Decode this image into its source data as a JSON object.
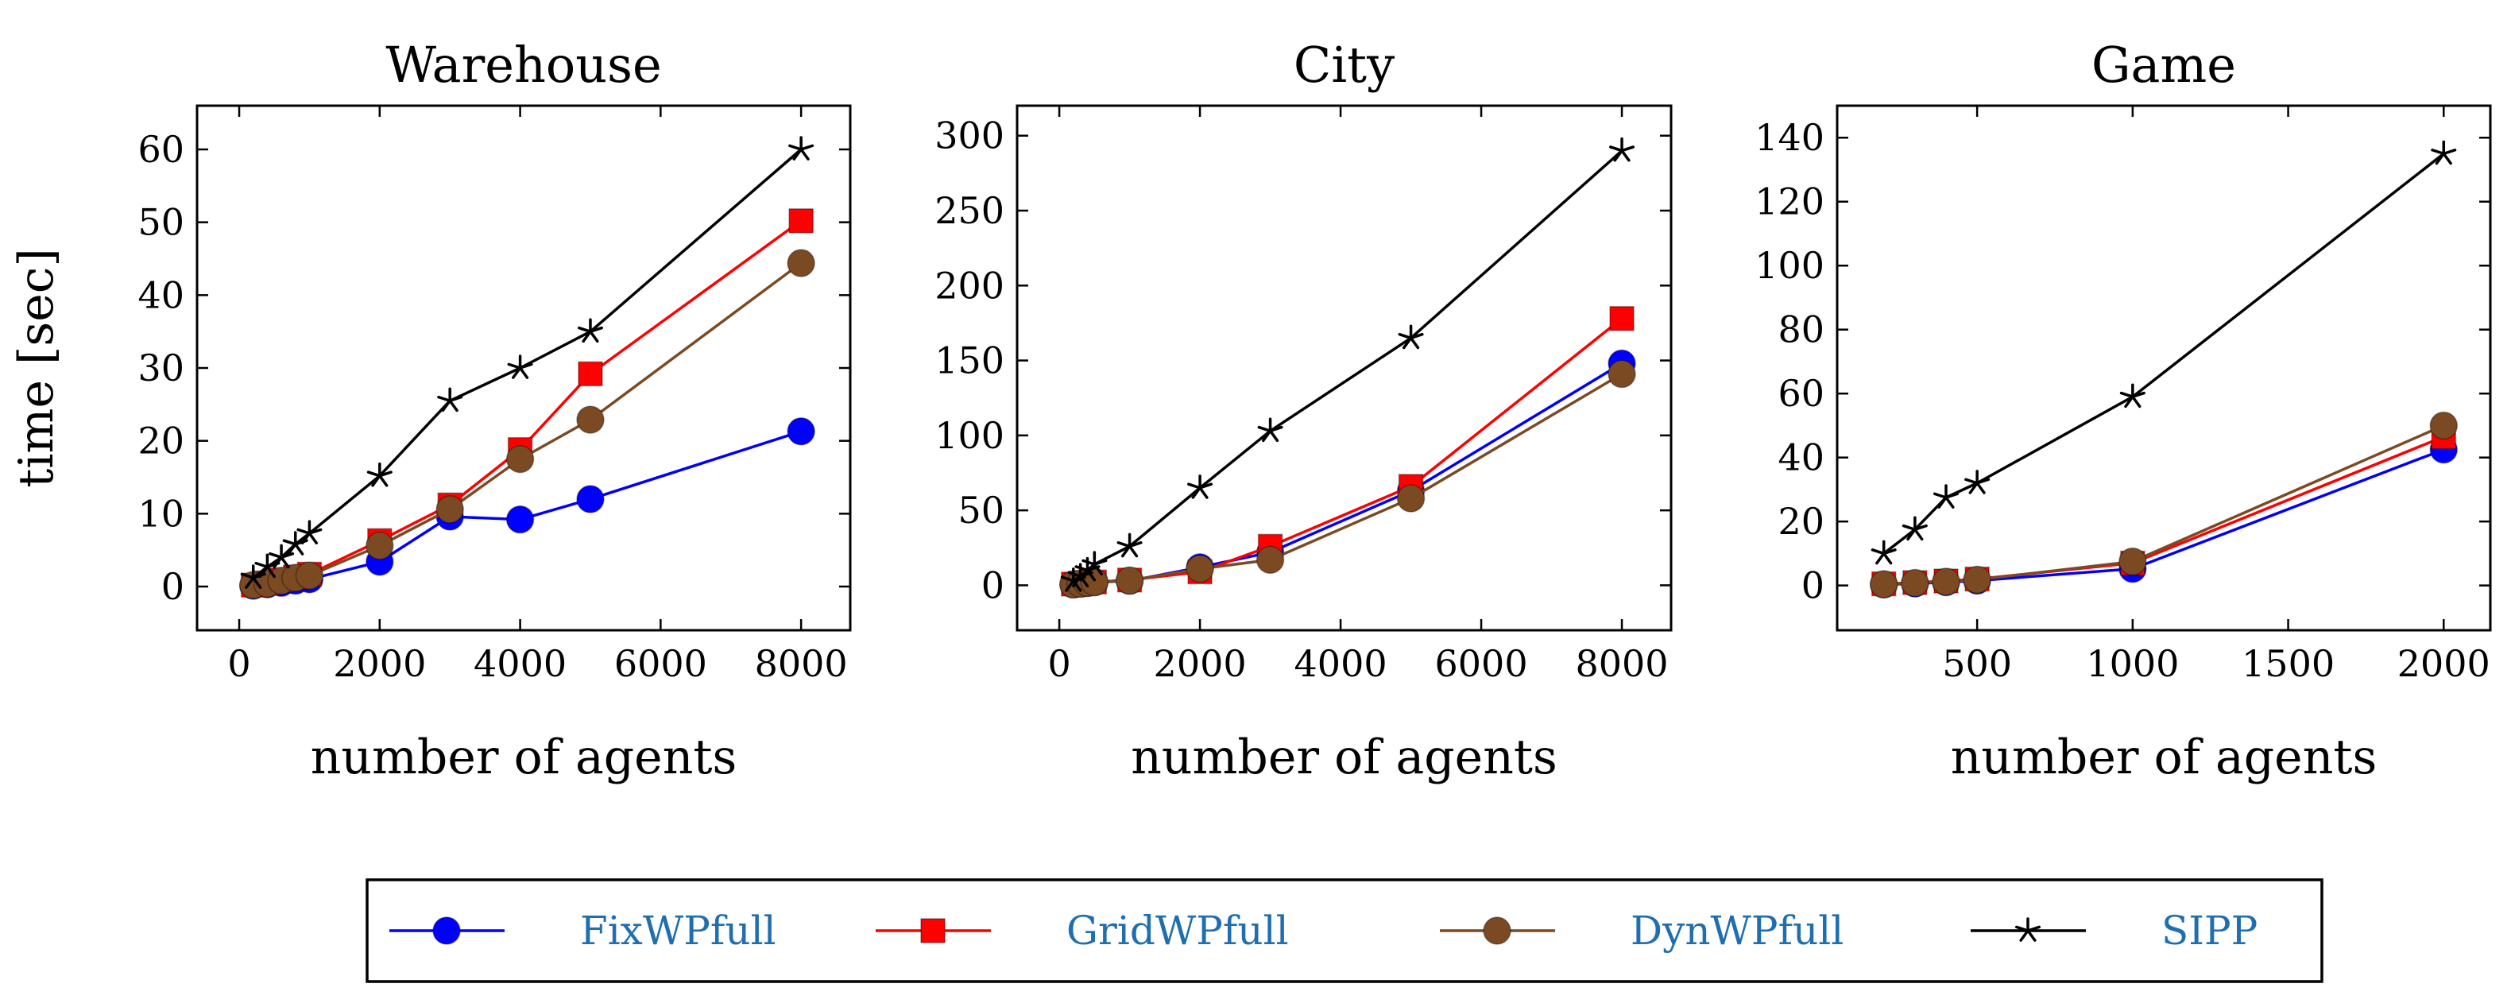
{
  "legend": {
    "placement": "bottom-center",
    "entries": [
      {
        "name": "FixWPfull",
        "color": "#0000ff",
        "marker": "circle"
      },
      {
        "name": "GridWPfull",
        "color": "#ff0000",
        "marker": "square"
      },
      {
        "name": "DynWPfull",
        "color": "#7b4a22",
        "marker": "circle"
      },
      {
        "name": "SIPP",
        "color": "#000000",
        "marker": "star"
      }
    ]
  },
  "chart_data": [
    {
      "type": "line",
      "title": "Warehouse",
      "xlabel": "number of agents",
      "ylabel": "time [sec]",
      "xlim": [
        -600,
        8700
      ],
      "ylim": [
        -6,
        66
      ],
      "xticks": [
        0,
        2000,
        4000,
        6000,
        8000
      ],
      "yticks": [
        0,
        10,
        20,
        30,
        40,
        50,
        60
      ],
      "grid": false,
      "series": [
        {
          "name": "FixWPfull",
          "x": [
            200,
            400,
            600,
            800,
            1000,
            2000,
            3000,
            4000,
            5000,
            8000
          ],
          "y": [
            0.1,
            0.3,
            0.5,
            0.8,
            1.0,
            3.4,
            9.6,
            9.2,
            12.0,
            21.3
          ]
        },
        {
          "name": "GridWPfull",
          "x": [
            200,
            400,
            600,
            800,
            1000,
            2000,
            3000,
            4000,
            5000,
            8000
          ],
          "y": [
            0.2,
            0.5,
            0.9,
            1.3,
            1.7,
            6.3,
            11.2,
            18.8,
            29.2,
            50.2
          ]
        },
        {
          "name": "DynWPfull",
          "x": [
            200,
            400,
            600,
            800,
            1000,
            2000,
            3000,
            4000,
            5000,
            8000
          ],
          "y": [
            0.2,
            0.4,
            0.8,
            1.2,
            1.5,
            5.6,
            10.6,
            17.5,
            22.9,
            44.4
          ]
        },
        {
          "name": "SIPP",
          "x": [
            200,
            400,
            600,
            800,
            1000,
            2000,
            3000,
            4000,
            5000,
            8000
          ],
          "y": [
            1.2,
            2.7,
            4.0,
            5.8,
            7.3,
            15.2,
            25.5,
            30.0,
            35.0,
            60.0
          ]
        }
      ]
    },
    {
      "type": "line",
      "title": "City",
      "xlabel": "number of agents",
      "ylabel": "",
      "xlim": [
        -600,
        8700
      ],
      "ylim": [
        -30,
        320
      ],
      "xticks": [
        0,
        2000,
        4000,
        6000,
        8000
      ],
      "yticks": [
        0,
        50,
        100,
        150,
        200,
        250,
        300
      ],
      "grid": false,
      "series": [
        {
          "name": "FixWPfull",
          "x": [
            200,
            300,
            400,
            500,
            1000,
            2000,
            3000,
            5000,
            8000
          ],
          "y": [
            0.5,
            1.0,
            1.5,
            2.0,
            3.0,
            12.0,
            22.0,
            63.0,
            148.0
          ]
        },
        {
          "name": "GridWPfull",
          "x": [
            200,
            300,
            400,
            500,
            1000,
            2000,
            3000,
            5000,
            8000
          ],
          "y": [
            0.8,
            1.2,
            1.8,
            2.2,
            3.5,
            9.0,
            26.0,
            66.0,
            178.0
          ]
        },
        {
          "name": "DynWPfull",
          "x": [
            200,
            300,
            400,
            500,
            1000,
            2000,
            3000,
            5000,
            8000
          ],
          "y": [
            0.6,
            1.1,
            1.6,
            2.1,
            3.2,
            11.0,
            17.0,
            58.0,
            141.0
          ]
        },
        {
          "name": "SIPP",
          "x": [
            200,
            300,
            400,
            500,
            1000,
            2000,
            3000,
            5000,
            8000
          ],
          "y": [
            3.0,
            6.0,
            10.0,
            14.0,
            26.0,
            65.0,
            103.0,
            165.0,
            290.0
          ]
        }
      ]
    },
    {
      "type": "line",
      "title": "Game",
      "xlabel": "number of agents",
      "ylabel": "",
      "xlim": [
        50,
        2150
      ],
      "ylim": [
        -14,
        150
      ],
      "xticks": [
        500,
        1000,
        1500,
        2000
      ],
      "yticks": [
        0,
        20,
        40,
        60,
        80,
        100,
        120,
        140
      ],
      "grid": false,
      "series": [
        {
          "name": "FixWPfull",
          "x": [
            200,
            300,
            400,
            500,
            1000,
            2000
          ],
          "y": [
            0.3,
            0.6,
            1.0,
            1.5,
            5.2,
            42.5
          ]
        },
        {
          "name": "GridWPfull",
          "x": [
            200,
            300,
            400,
            500,
            1000,
            2000
          ],
          "y": [
            0.5,
            0.9,
            1.4,
            2.0,
            7.0,
            46.5
          ]
        },
        {
          "name": "DynWPfull",
          "x": [
            200,
            300,
            400,
            500,
            1000,
            2000
          ],
          "y": [
            0.4,
            0.8,
            1.2,
            1.8,
            7.5,
            50.0
          ]
        },
        {
          "name": "SIPP",
          "x": [
            200,
            300,
            400,
            500,
            1000,
            2000
          ],
          "y": [
            10.0,
            17.5,
            27.5,
            32.0,
            59.0,
            135.0
          ]
        }
      ]
    }
  ]
}
